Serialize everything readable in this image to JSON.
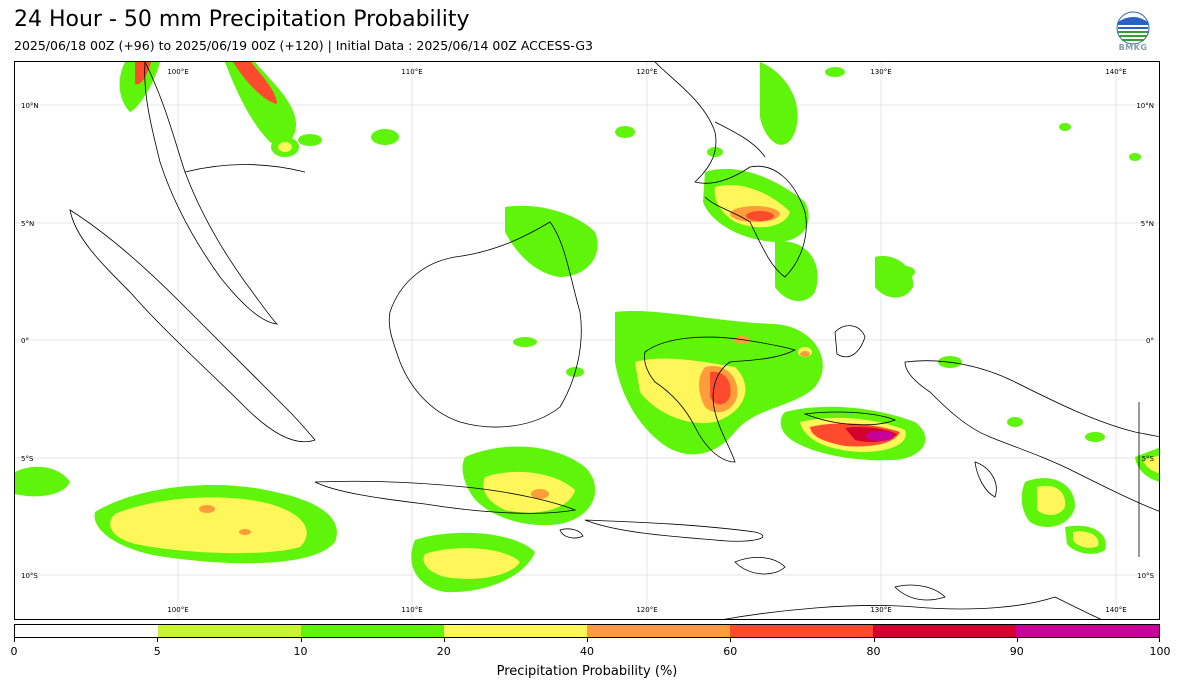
{
  "header": {
    "title": "24 Hour - 50 mm Precipitation Probability",
    "subtitle": "2025/06/18 00Z (+96) to 2025/06/19 00Z (+120) | Initial Data : 2025/06/14 00Z ACCESS-G3",
    "logo_text": "BMKG"
  },
  "map": {
    "lon_labels": [
      "100°E",
      "110°E",
      "120°E",
      "130°E",
      "140°E"
    ],
    "lat_labels": [
      "10°N",
      "5°N",
      "0°",
      "5°S",
      "10°S"
    ]
  },
  "colorbar": {
    "title": "Precipitation Probability (%)",
    "ticks": [
      "0",
      "5",
      "10",
      "20",
      "40",
      "60",
      "80",
      "90",
      "100"
    ],
    "colors": [
      "#ffffff",
      "#c8f532",
      "#5ef50a",
      "#fff65a",
      "#ff9d3a",
      "#ff4b2d",
      "#d4002e",
      "#c8009a"
    ]
  }
}
